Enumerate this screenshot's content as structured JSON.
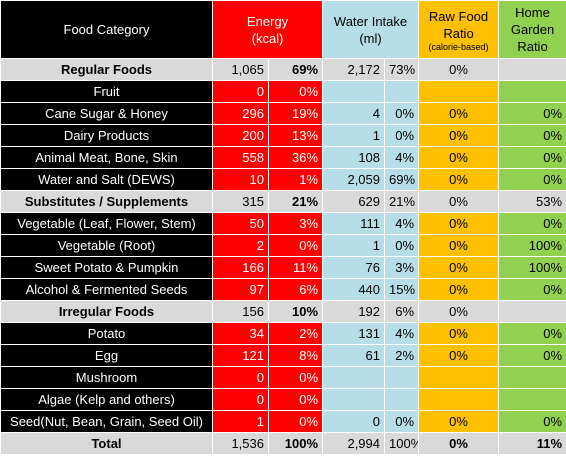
{
  "headers": {
    "food_category": "Food Category",
    "energy_line1": "Energy",
    "energy_line2": "(kcal)",
    "water_line1": "Water Intake",
    "water_line2": "(ml)",
    "raw_line1": "Raw Food",
    "raw_line2": "Ratio",
    "raw_line3": "(calorie-based)",
    "garden_line1": "Home",
    "garden_line2": "Garden",
    "garden_line3": "Ratio"
  },
  "rows": [
    {
      "type": "group",
      "name": "Regular Foods",
      "energy": "1,065",
      "energy_pct": "69%",
      "water": "2,172",
      "water_pct": "73%",
      "raw": "0%",
      "garden": ""
    },
    {
      "type": "item",
      "name": "Fruit",
      "energy": "0",
      "energy_pct": "0%",
      "water": "",
      "water_pct": "",
      "raw": "",
      "garden": ""
    },
    {
      "type": "item",
      "name": "Cane Sugar & Honey",
      "energy": "296",
      "energy_pct": "19%",
      "water": "4",
      "water_pct": "0%",
      "raw": "0%",
      "garden": "0%"
    },
    {
      "type": "item",
      "name": "Dairy Products",
      "energy": "200",
      "energy_pct": "13%",
      "water": "1",
      "water_pct": "0%",
      "raw": "0%",
      "garden": "0%"
    },
    {
      "type": "item",
      "name": "Animal Meat, Bone, Skin",
      "energy": "558",
      "energy_pct": "36%",
      "water": "108",
      "water_pct": "4%",
      "raw": "0%",
      "garden": "0%"
    },
    {
      "type": "item",
      "name": "Water and Salt (DEWS)",
      "energy": "10",
      "energy_pct": "1%",
      "water": "2,059",
      "water_pct": "69%",
      "raw": "0%",
      "garden": "0%"
    },
    {
      "type": "group",
      "name": "Substitutes / Supplements",
      "energy": "315",
      "energy_pct": "21%",
      "water": "629",
      "water_pct": "21%",
      "raw": "0%",
      "garden": "53%"
    },
    {
      "type": "item",
      "name": "Vegetable (Leaf, Flower, Stem)",
      "energy": "50",
      "energy_pct": "3%",
      "water": "111",
      "water_pct": "4%",
      "raw": "0%",
      "garden": "0%"
    },
    {
      "type": "item",
      "name": "Vegetable (Root)",
      "energy": "2",
      "energy_pct": "0%",
      "water": "1",
      "water_pct": "0%",
      "raw": "0%",
      "garden": "100%"
    },
    {
      "type": "item",
      "name": "Sweet Potato & Pumpkin",
      "energy": "166",
      "energy_pct": "11%",
      "water": "76",
      "water_pct": "3%",
      "raw": "0%",
      "garden": "100%"
    },
    {
      "type": "item",
      "name": "Alcohol & Fermented Seeds",
      "energy": "97",
      "energy_pct": "6%",
      "water": "440",
      "water_pct": "15%",
      "raw": "0%",
      "garden": "0%"
    },
    {
      "type": "group",
      "name": "Irregular Foods",
      "energy": "156",
      "energy_pct": "10%",
      "water": "192",
      "water_pct": "6%",
      "raw": "0%",
      "garden": ""
    },
    {
      "type": "item",
      "name": "Potato",
      "energy": "34",
      "energy_pct": "2%",
      "water": "131",
      "water_pct": "4%",
      "raw": "0%",
      "garden": "0%"
    },
    {
      "type": "item",
      "name": "Egg",
      "energy": "121",
      "energy_pct": "8%",
      "water": "61",
      "water_pct": "2%",
      "raw": "0%",
      "garden": "0%"
    },
    {
      "type": "item",
      "name": "Mushroom",
      "energy": "0",
      "energy_pct": "0%",
      "water": "",
      "water_pct": "",
      "raw": "",
      "garden": ""
    },
    {
      "type": "item",
      "name": "Algae (Kelp and others)",
      "energy": "0",
      "energy_pct": "0%",
      "water": "",
      "water_pct": "",
      "raw": "",
      "garden": ""
    },
    {
      "type": "item",
      "name": "Seed(Nut, Bean, Grain, Seed Oil)",
      "energy": "1",
      "energy_pct": "0%",
      "water": "0",
      "water_pct": "0%",
      "raw": "0%",
      "garden": "0%"
    },
    {
      "type": "total",
      "name": "Total",
      "energy": "1,536",
      "energy_pct": "100%",
      "water": "2,994",
      "water_pct": "100%",
      "raw": "0%",
      "garden": "11%"
    }
  ]
}
